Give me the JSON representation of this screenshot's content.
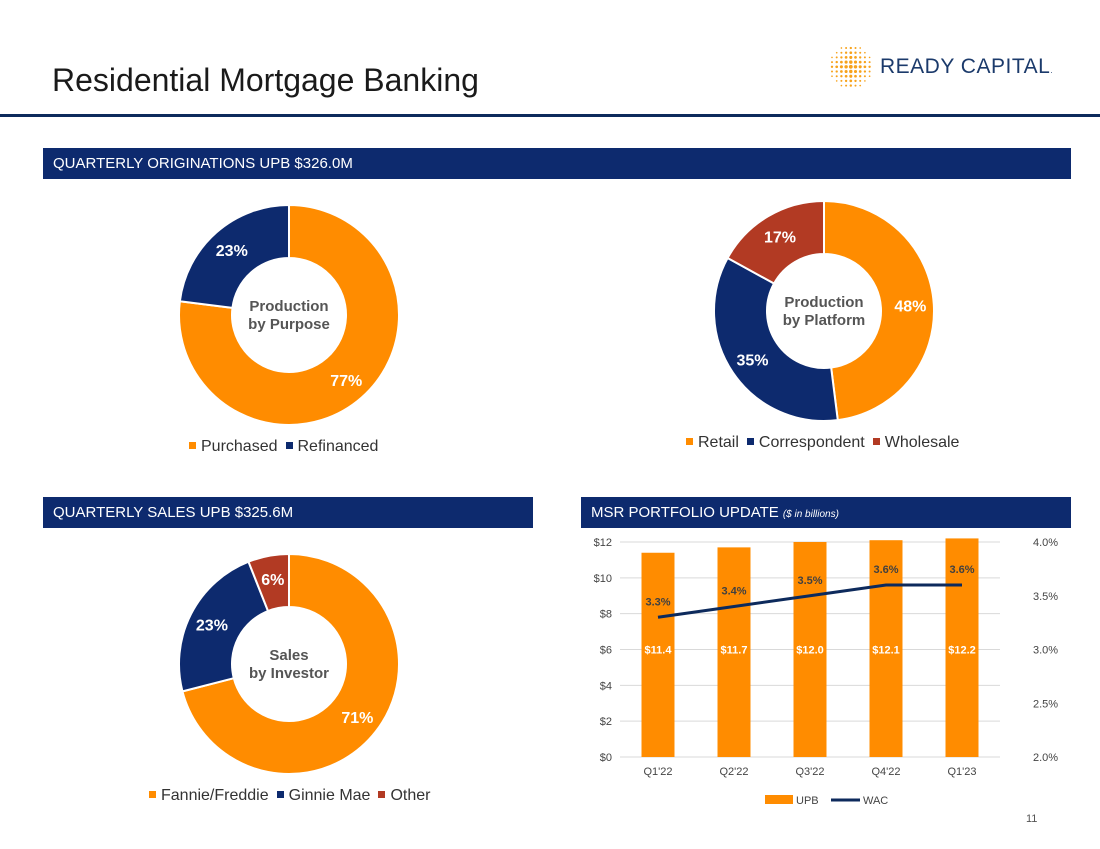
{
  "header": {
    "title": "Residential Mortgage Banking",
    "logo_text": "READY CAPITAL",
    "logo_mark": "."
  },
  "colors": {
    "orange": "#ff8c00",
    "navy": "#0d2a6e",
    "red": "#b23a23",
    "banner": "#0d2a6e",
    "wac_line": "#0d2a5c"
  },
  "banners": {
    "originations": "QUARTERLY ORIGINATIONS UPB $326.0M",
    "sales": "QUARTERLY SALES UPB $325.6M",
    "msr": "MSR PORTFOLIO UPDATE",
    "msr_sub": "($ in billions)"
  },
  "page_number": "11",
  "chart_data": [
    {
      "type": "pie",
      "title": "Production by Purpose",
      "center_lines": [
        "Production",
        "by Purpose"
      ],
      "categories": [
        "Purchased",
        "Refinanced"
      ],
      "values": [
        77,
        23
      ],
      "labels": [
        "77%",
        "23%"
      ],
      "colors": [
        "#ff8c00",
        "#0d2a6e"
      ],
      "legend": [
        "Purchased",
        "Refinanced"
      ]
    },
    {
      "type": "pie",
      "title": "Production by Platform",
      "center_lines": [
        "Production",
        "by Platform"
      ],
      "categories": [
        "Retail",
        "Correspondent",
        "Wholesale"
      ],
      "values": [
        48,
        35,
        17
      ],
      "labels": [
        "48%",
        "35%",
        "17%"
      ],
      "colors": [
        "#ff8c00",
        "#0d2a6e",
        "#b23a23"
      ],
      "legend": [
        "Retail",
        "Correspondent",
        "Wholesale"
      ]
    },
    {
      "type": "pie",
      "title": "Sales by Investor",
      "center_lines": [
        "Sales",
        "by Investor"
      ],
      "categories": [
        "Fannie/Freddie",
        "Ginnie Mae",
        "Other"
      ],
      "values": [
        71,
        23,
        6
      ],
      "labels": [
        "71%",
        "23%",
        "6%"
      ],
      "colors": [
        "#ff8c00",
        "#0d2a6e",
        "#b23a23"
      ],
      "legend": [
        "Fannie/Freddie",
        "Ginnie Mae",
        "Other"
      ]
    },
    {
      "type": "bar",
      "title": "MSR PORTFOLIO UPDATE ($ in billions)",
      "categories": [
        "Q1'22",
        "Q2'22",
        "Q3'22",
        "Q4'22",
        "Q1'23"
      ],
      "series": [
        {
          "name": "UPB",
          "kind": "bar",
          "axis": "left",
          "values": [
            11.4,
            11.7,
            12.0,
            12.1,
            12.2
          ],
          "labels": [
            "$11.4",
            "$11.7",
            "$12.0",
            "$12.1",
            "$12.2"
          ]
        },
        {
          "name": "WAC",
          "kind": "line",
          "axis": "right",
          "values": [
            3.3,
            3.4,
            3.5,
            3.6,
            3.6
          ],
          "labels": [
            "3.3%",
            "3.4%",
            "3.5%",
            "3.6%",
            "3.6%"
          ]
        }
      ],
      "y_left": {
        "range": [
          0,
          12
        ],
        "ticks": [
          "$0",
          "$2",
          "$4",
          "$6",
          "$8",
          "$10",
          "$12"
        ]
      },
      "y_right": {
        "range": [
          2.0,
          4.0
        ],
        "ticks": [
          "2.0%",
          "2.5%",
          "3.0%",
          "3.5%",
          "4.0%"
        ]
      },
      "legend": [
        "UPB",
        "WAC"
      ],
      "grid": true
    }
  ]
}
